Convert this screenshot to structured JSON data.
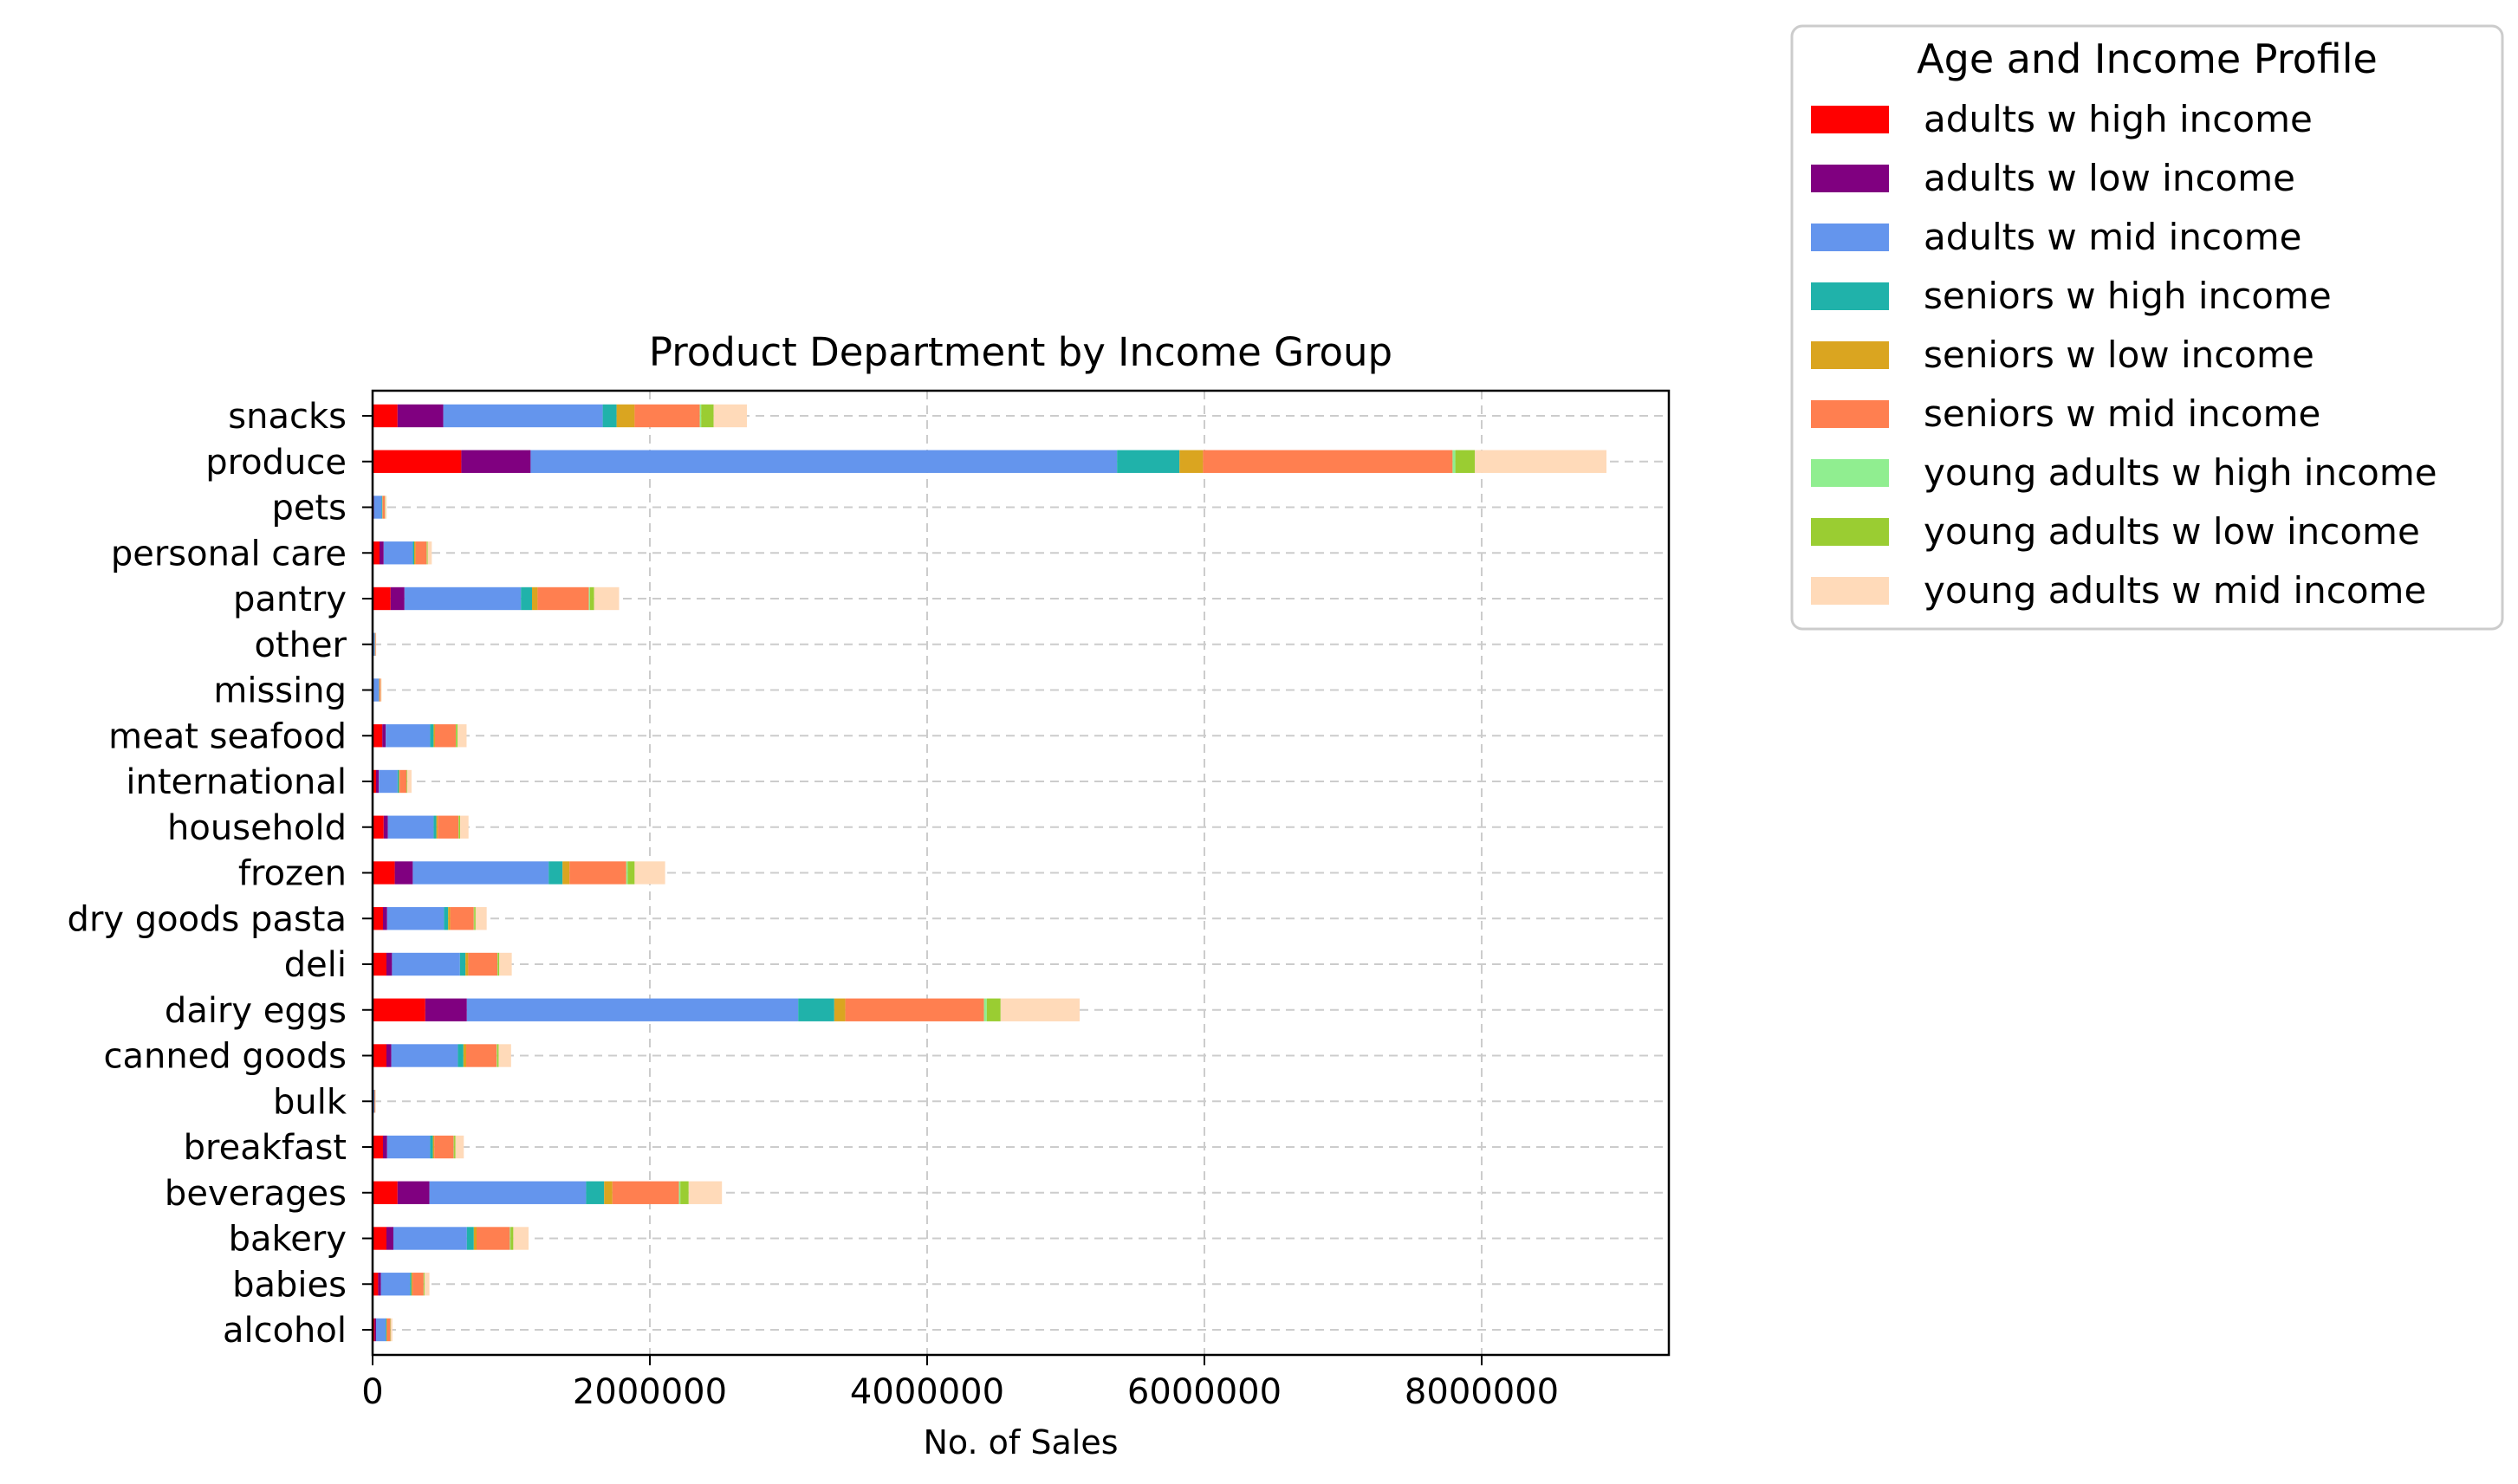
{
  "chart_data": {
    "type": "bar",
    "orientation": "horizontal",
    "stacked": true,
    "title": "Product Department by Income Group",
    "xlabel": "No. of Sales",
    "ylabel": "",
    "xlim": [
      0,
      9350000
    ],
    "xticks": [
      0,
      2000000,
      4000000,
      6000000,
      8000000
    ],
    "xtick_labels": [
      "0",
      "2000000",
      "4000000",
      "6000000",
      "8000000"
    ],
    "grid": true,
    "legend": {
      "title": "Age and Income Profile",
      "placement": "outside-upper-right"
    },
    "categories": [
      "snacks",
      "produce",
      "pets",
      "personal care",
      "pantry",
      "other",
      "missing",
      "meat seafood",
      "international",
      "household",
      "frozen",
      "dry goods pasta",
      "deli",
      "dairy eggs",
      "canned goods",
      "bulk",
      "breakfast",
      "beverages",
      "bakery",
      "babies",
      "alcohol"
    ],
    "series": [
      {
        "name": "adults w high income",
        "color": "#ff0000",
        "values": [
          180000,
          640000,
          5000,
          50000,
          130000,
          2000,
          4000,
          70000,
          25000,
          80000,
          160000,
          75000,
          100000,
          380000,
          100000,
          2000,
          75000,
          180000,
          100000,
          40000,
          15000
        ]
      },
      {
        "name": "adults w low income",
        "color": "#800080",
        "values": [
          330000,
          500000,
          5000,
          30000,
          100000,
          2000,
          3000,
          25000,
          20000,
          30000,
          130000,
          30000,
          40000,
          300000,
          35000,
          1000,
          30000,
          230000,
          50000,
          20000,
          10000
        ]
      },
      {
        "name": "adults w mid income",
        "color": "#6495ed",
        "values": [
          1150000,
          4230000,
          55000,
          210000,
          840000,
          11000,
          38000,
          320000,
          135000,
          330000,
          980000,
          410000,
          490000,
          2390000,
          480000,
          10000,
          310000,
          1130000,
          530000,
          210000,
          70000
        ]
      },
      {
        "name": "seniors w high income",
        "color": "#20b2aa",
        "values": [
          100000,
          450000,
          5000,
          10000,
          80000,
          2000,
          2000,
          25000,
          10000,
          20000,
          100000,
          30000,
          40000,
          260000,
          40000,
          1000,
          20000,
          130000,
          50000,
          10000,
          5000
        ]
      },
      {
        "name": "seniors w low income",
        "color": "#daa520",
        "values": [
          130000,
          170000,
          3000,
          10000,
          40000,
          1000,
          2000,
          10000,
          5000,
          10000,
          50000,
          15000,
          20000,
          80000,
          20000,
          500,
          10000,
          60000,
          20000,
          8000,
          3000
        ]
      },
      {
        "name": "seniors w mid income",
        "color": "#ff7f50",
        "values": [
          470000,
          1800000,
          15000,
          80000,
          370000,
          4000,
          9000,
          150000,
          50000,
          150000,
          410000,
          170000,
          210000,
          1000000,
          220000,
          5000,
          140000,
          480000,
          240000,
          80000,
          25000
        ]
      },
      {
        "name": "young adults w high income",
        "color": "#90ee90",
        "values": [
          10000,
          20000,
          1000,
          2000,
          8000,
          0,
          0,
          3000,
          1000,
          2000,
          10000,
          3000,
          4000,
          20000,
          4000,
          0,
          3000,
          10000,
          5000,
          2000,
          1000
        ]
      },
      {
        "name": "young adults w low income",
        "color": "#9acd32",
        "values": [
          90000,
          140000,
          2000,
          5000,
          30000,
          1000,
          1000,
          10000,
          5000,
          10000,
          50000,
          10000,
          10000,
          100000,
          10000,
          500,
          10000,
          60000,
          20000,
          5000,
          2000
        ]
      },
      {
        "name": "young adults w mid income",
        "color": "#ffdab9",
        "values": [
          240000,
          950000,
          10000,
          30000,
          180000,
          3000,
          6000,
          65000,
          30000,
          60000,
          220000,
          80000,
          90000,
          570000,
          90000,
          3000,
          60000,
          240000,
          110000,
          35000,
          12000
        ]
      }
    ]
  }
}
